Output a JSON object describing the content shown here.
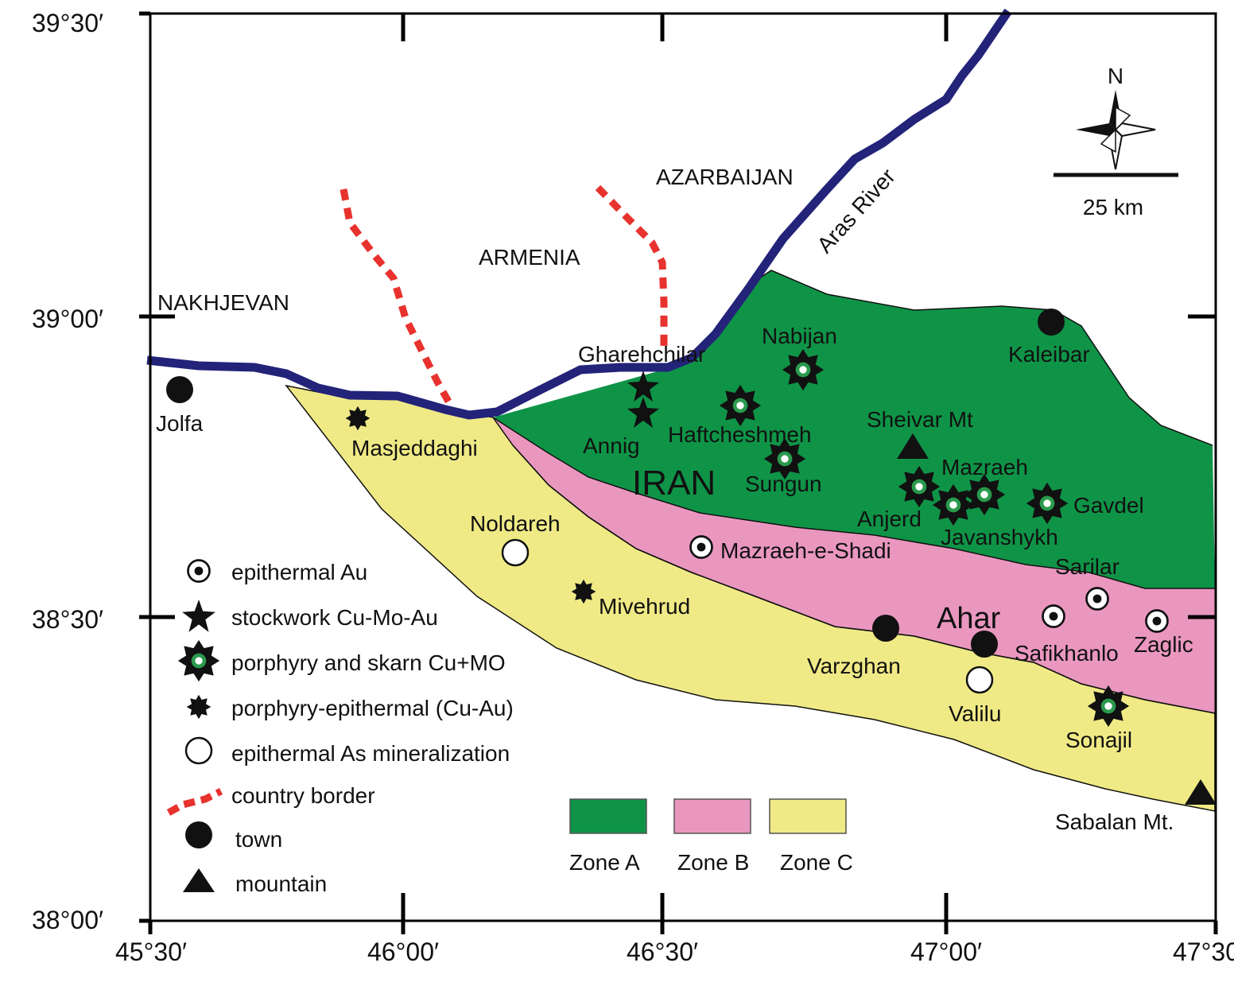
{
  "axes": {
    "x_ticks": [
      "45°30′",
      "46°00′",
      "46°30′",
      "47°00′",
      "47°30′"
    ],
    "y_ticks": [
      "39°30′",
      "39°00′",
      "38°30′",
      "38°00′"
    ]
  },
  "regions": {
    "nakhjevan": "NAKHJEVAN",
    "armenia": "ARMENIA",
    "azarbaijan": "AZARBAIJAN",
    "iran": "IRAN"
  },
  "river": "Aras River",
  "north": "N",
  "scale": "25 km",
  "towns": {
    "jolfa": "Jolfa",
    "kaleibar": "Kaleibar",
    "ahar": "Ahar",
    "varzghan": "Varzghan"
  },
  "mountains": {
    "sheivar": "Sheivar Mt",
    "sabalan": "Sabalan Mt."
  },
  "deposits": {
    "gharehchilar": "Gharehchilar",
    "annig": "Annig",
    "nabijan": "Nabijan",
    "haftcheshmeh": "Haftcheshmeh",
    "sungun": "Sungun",
    "mazraeh": "Mazraeh",
    "anjerd": "Anjerd",
    "javanshykh": "Javanshykh",
    "gavdel": "Gavdel",
    "sarilar": "Sarilar",
    "mazraeh_e_shadi": "Mazraeh-e-Shadi",
    "masjeddaghi": "Masjeddaghi",
    "noldareh": "Noldareh",
    "mivehrud": "Mivehrud",
    "safikhanlo": "Safikhanlo",
    "zaglic": "Zaglic",
    "valilu": "Valilu",
    "sonajil": "Sonajil"
  },
  "legend": {
    "epithermal_au": "epithermal Au",
    "stockwork": "stockwork Cu-Mo-Au",
    "porphyry_skarn": "porphyry and skarn Cu+MO",
    "porphyry_epithermal": "porphyry-epithermal (Cu-Au)",
    "epithermal_as": "epithermal As mineralization",
    "border": "country border",
    "town": "town",
    "mountain": "mountain"
  },
  "zones": [
    {
      "label": "Zone A",
      "color": "#0f9447"
    },
    {
      "label": "Zone B",
      "color": "#ea97c0"
    },
    {
      "label": "Zone C",
      "color": "#f0ea86"
    }
  ],
  "colors": {
    "river": "#23237a",
    "border": "#e8322e"
  }
}
